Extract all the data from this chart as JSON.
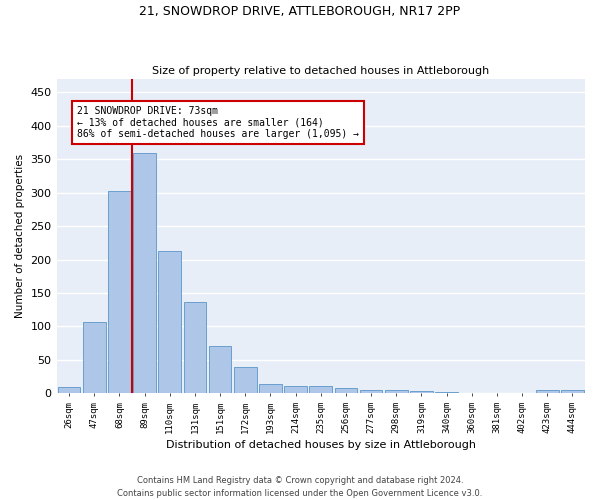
{
  "title1": "21, SNOWDROP DRIVE, ATTLEBOROUGH, NR17 2PP",
  "title2": "Size of property relative to detached houses in Attleborough",
  "xlabel": "Distribution of detached houses by size in Attleborough",
  "ylabel": "Number of detached properties",
  "categories": [
    "26sqm",
    "47sqm",
    "68sqm",
    "89sqm",
    "110sqm",
    "131sqm",
    "151sqm",
    "172sqm",
    "193sqm",
    "214sqm",
    "235sqm",
    "256sqm",
    "277sqm",
    "298sqm",
    "319sqm",
    "340sqm",
    "360sqm",
    "381sqm",
    "402sqm",
    "423sqm",
    "444sqm"
  ],
  "values": [
    9,
    107,
    302,
    360,
    213,
    136,
    71,
    39,
    14,
    11,
    10,
    7,
    5,
    4,
    3,
    1,
    0,
    0,
    0,
    4,
    4
  ],
  "bar_color": "#aec6e8",
  "bar_edge_color": "#5a96c8",
  "bg_color": "#e8eef8",
  "grid_color": "#ffffff",
  "vline_x_idx": 2,
  "vline_color": "#cc0000",
  "annotation_line1": "21 SNOWDROP DRIVE: 73sqm",
  "annotation_line2": "← 13% of detached houses are smaller (164)",
  "annotation_line3": "86% of semi-detached houses are larger (1,095) →",
  "annotation_box_color": "#ffffff",
  "annotation_box_edge": "#cc0000",
  "footer": "Contains HM Land Registry data © Crown copyright and database right 2024.\nContains public sector information licensed under the Open Government Licence v3.0.",
  "ylim": [
    0,
    470
  ],
  "yticks": [
    0,
    50,
    100,
    150,
    200,
    250,
    300,
    350,
    400,
    450
  ]
}
